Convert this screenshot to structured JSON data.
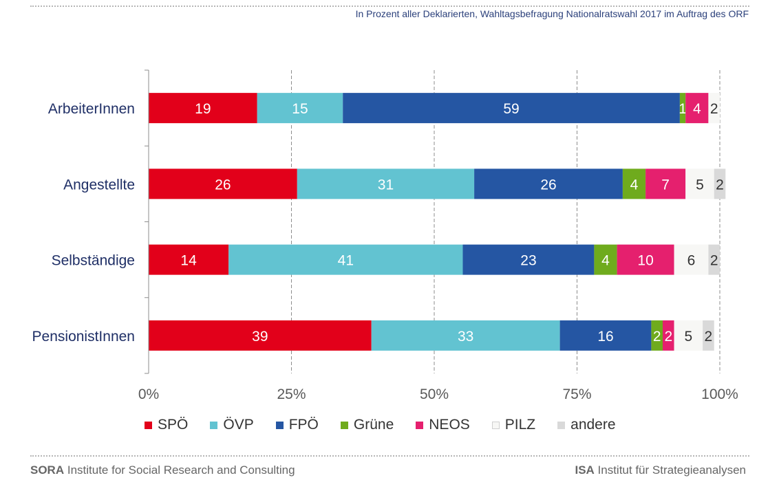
{
  "header": {
    "subtitle": "In Prozent aller Deklarierten, Wahltagsbefragung Nationalratswahl 2017 im Auftrag des ORF"
  },
  "footer": {
    "left_bold": "SORA",
    "left_text": " Institute for Social Research and Consulting",
    "right_bold": "ISA",
    "right_text": " Institut für Strategieanalysen"
  },
  "colors": {
    "SPÖ": "#e2001a",
    "ÖVP": "#62c3d1",
    "FPÖ": "#2556a3",
    "Grüne": "#6fab1d",
    "NEOS": "#e5206e",
    "PILZ": "#f7f7f5",
    "andere": "#d9d9d9"
  },
  "chart_data": {
    "type": "bar",
    "orientation": "horizontal",
    "stacked": true,
    "categories": [
      "ArbeiterInnen",
      "Angestellte",
      "Selbständige",
      "PensionistInnen"
    ],
    "series": [
      {
        "name": "SPÖ",
        "values": [
          19,
          26,
          14,
          39
        ]
      },
      {
        "name": "ÖVP",
        "values": [
          15,
          31,
          41,
          33
        ]
      },
      {
        "name": "FPÖ",
        "values": [
          59,
          26,
          23,
          16
        ]
      },
      {
        "name": "Grüne",
        "values": [
          1,
          4,
          4,
          2
        ]
      },
      {
        "name": "NEOS",
        "values": [
          4,
          7,
          10,
          2
        ]
      },
      {
        "name": "PILZ",
        "values": [
          2,
          5,
          6,
          5
        ]
      },
      {
        "name": "andere",
        "values": [
          0,
          2,
          2,
          2
        ]
      }
    ],
    "xlim": [
      0,
      100
    ],
    "xticks": [
      "0%",
      "25%",
      "50%",
      "75%",
      "100%"
    ],
    "grid": "vertical dashed",
    "legend_position": "bottom"
  }
}
